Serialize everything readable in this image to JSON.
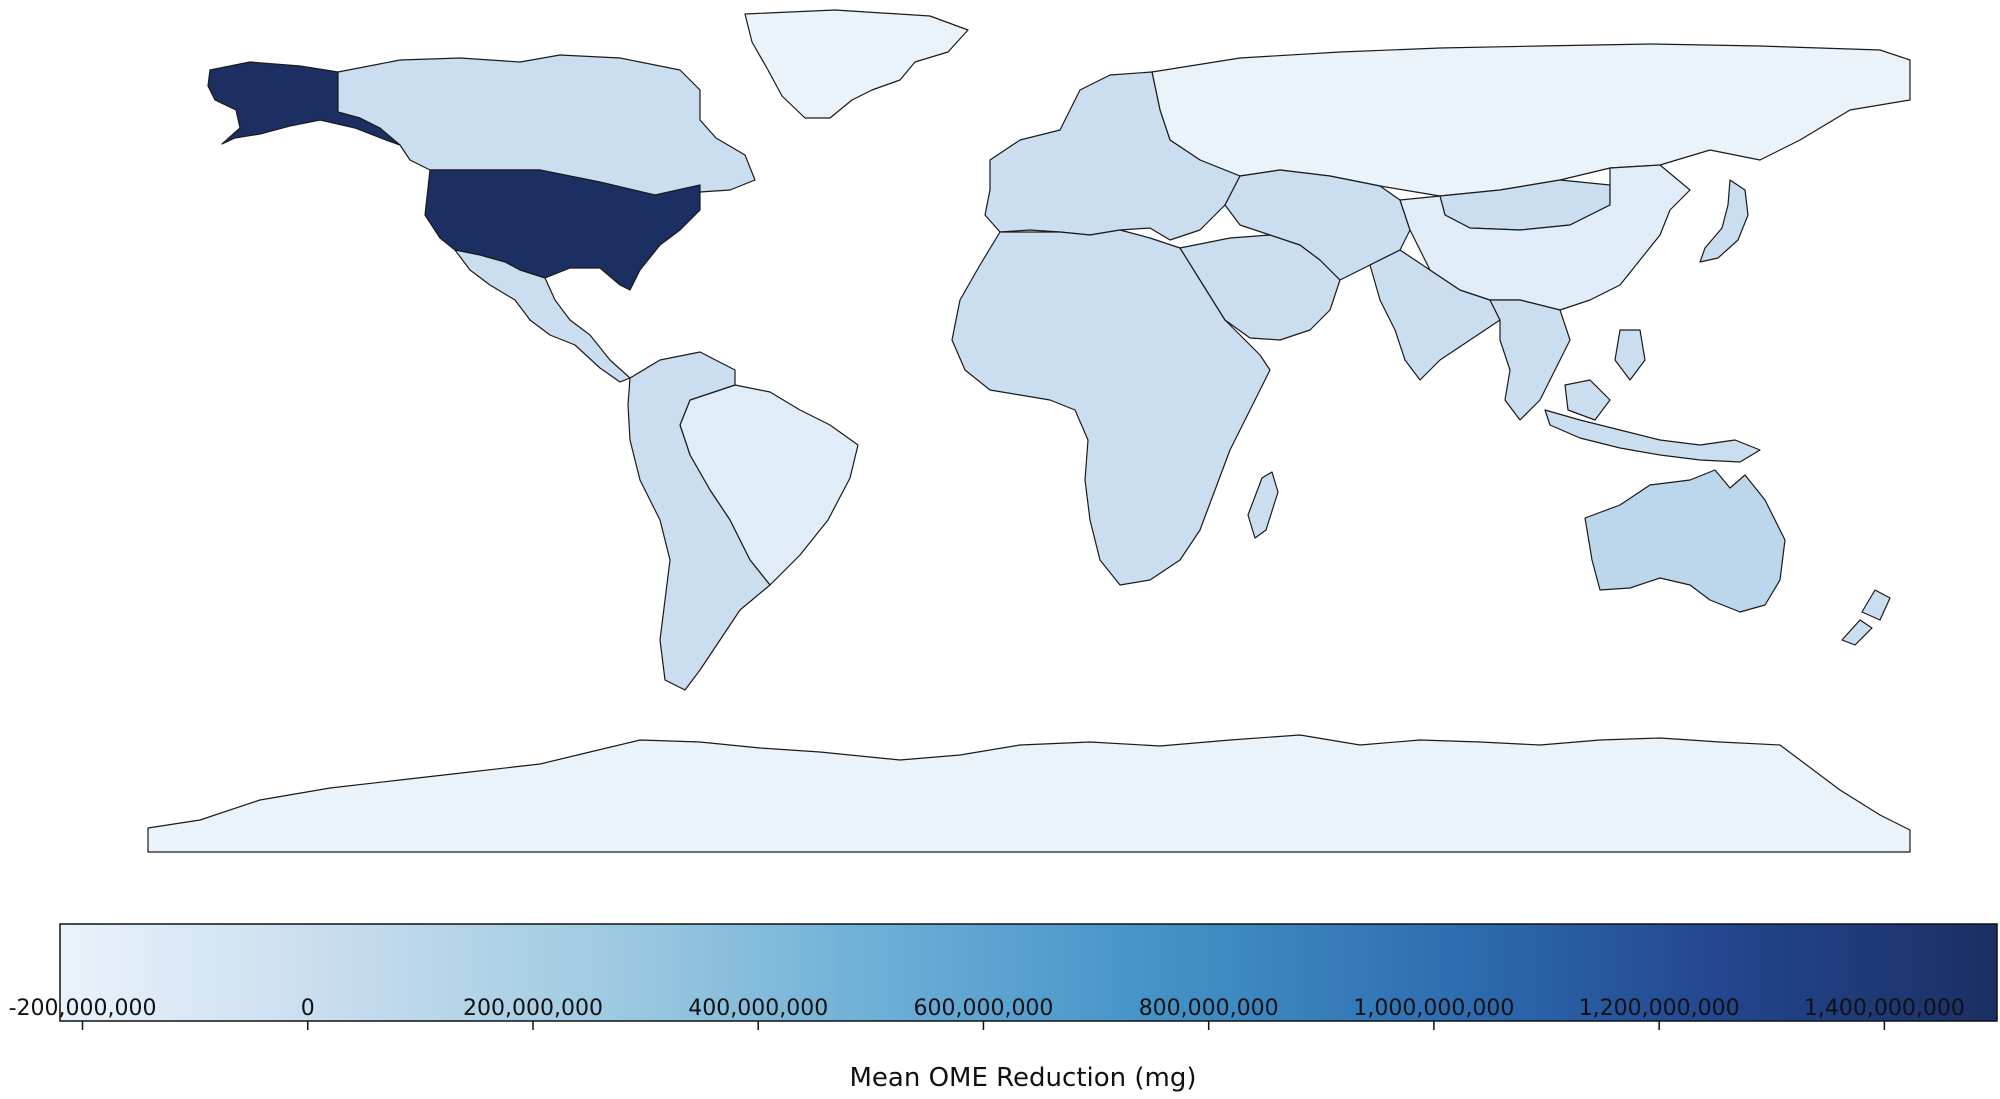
{
  "chart_data": {
    "type": "choropleth",
    "colorbar": {
      "label": "Mean OME Reduction (mg)",
      "min": -220000000,
      "max": 1500000000,
      "ticks": [
        -200000000,
        0,
        200000000,
        400000000,
        600000000,
        800000000,
        1000000000,
        1200000000,
        1400000000
      ],
      "tick_labels": [
        "-200,000,000",
        "0",
        "200,000,000",
        "400,000,000",
        "600,000,000",
        "800,000,000",
        "1,000,000,000",
        "1,200,000,000",
        "1,400,000,000"
      ],
      "colormap": [
        "#eaf2fa",
        "#c7dcef",
        "#9ecae1",
        "#6baed6",
        "#4292c6",
        "#2e6fb2",
        "#23468f",
        "#1b2f63"
      ]
    },
    "regions": [
      {
        "name": "United States",
        "value": 1500000000
      },
      {
        "name": "Alaska",
        "value": 1500000000
      },
      {
        "name": "Australia",
        "value": 90000000
      },
      {
        "name": "Canada",
        "value": 0
      },
      {
        "name": "Mexico",
        "value": 0
      },
      {
        "name": "Brazil",
        "value": -150000000
      },
      {
        "name": "South America (other)",
        "value": 0
      },
      {
        "name": "Europe",
        "value": 0
      },
      {
        "name": "Africa",
        "value": 0
      },
      {
        "name": "Middle East",
        "value": 0
      },
      {
        "name": "Russia",
        "value": -220000000
      },
      {
        "name": "Central Asia",
        "value": 0
      },
      {
        "name": "India",
        "value": 0
      },
      {
        "name": "China",
        "value": -150000000
      },
      {
        "name": "Mongolia",
        "value": 0
      },
      {
        "name": "Southeast Asia",
        "value": 0
      },
      {
        "name": "Indonesia",
        "value": 0
      },
      {
        "name": "Japan",
        "value": 0
      },
      {
        "name": "New Zealand",
        "value": 0
      },
      {
        "name": "Greenland",
        "value": -220000000
      },
      {
        "name": "Antarctica",
        "value": -220000000
      }
    ]
  }
}
